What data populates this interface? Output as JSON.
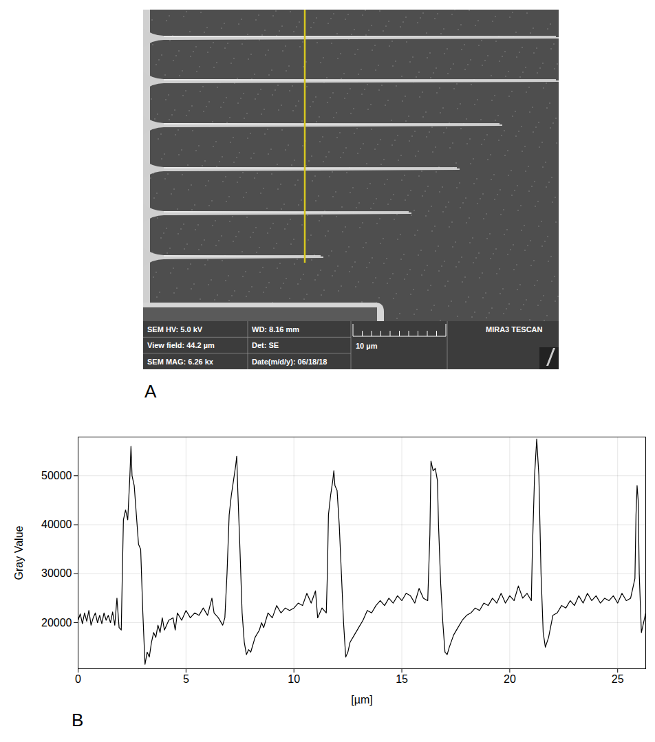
{
  "panel_a": {
    "label": "A",
    "info_bar": [
      [
        "SEM HV: 5.0 kV",
        "WD: 8.16 mm"
      ],
      [
        "View field: 44.2 µm",
        "Det: SE"
      ],
      [
        "SEM MAG: 6.26 kx",
        "Date(m/d/y): 06/18/18"
      ]
    ],
    "scale_bar_label": "10 µm",
    "brand": "MIRA3 TESCAN"
  },
  "chart_data": {
    "type": "line",
    "panel_label": "B",
    "x_label": "[µm]",
    "y_label": "Gray Value",
    "xlim": [
      0,
      26.3
    ],
    "ylim": [
      10600,
      57900
    ],
    "xticks": [
      0,
      5,
      10,
      15,
      20,
      25
    ],
    "yticks": [
      20000,
      30000,
      40000,
      50000
    ],
    "grid": true,
    "color": "#000000",
    "x": [
      0,
      0.1,
      0.2,
      0.3,
      0.4,
      0.5,
      0.6,
      0.7,
      0.8,
      0.9,
      1.0,
      1.1,
      1.2,
      1.3,
      1.4,
      1.5,
      1.6,
      1.7,
      1.8,
      1.9,
      2.0,
      2.05,
      2.1,
      2.2,
      2.3,
      2.4,
      2.45,
      2.5,
      2.6,
      2.7,
      2.8,
      2.9,
      3.0,
      3.1,
      3.2,
      3.3,
      3.4,
      3.5,
      3.6,
      3.7,
      3.8,
      3.9,
      4.0,
      4.2,
      4.4,
      4.5,
      4.6,
      4.8,
      5.0,
      5.2,
      5.4,
      5.6,
      5.8,
      6.0,
      6.2,
      6.3,
      6.5,
      6.7,
      6.8,
      6.9,
      7.0,
      7.1,
      7.2,
      7.3,
      7.35,
      7.4,
      7.5,
      7.6,
      7.7,
      7.8,
      7.9,
      8.0,
      8.2,
      8.4,
      8.5,
      8.6,
      8.8,
      9.0,
      9.2,
      9.4,
      9.6,
      9.8,
      10.0,
      10.2,
      10.4,
      10.6,
      10.8,
      11.0,
      11.1,
      11.3,
      11.5,
      11.55,
      11.6,
      11.7,
      11.8,
      11.85,
      11.9,
      12.0,
      12.1,
      12.2,
      12.3,
      12.4,
      12.5,
      12.6,
      12.8,
      13.0,
      13.2,
      13.4,
      13.6,
      13.8,
      14.0,
      14.2,
      14.4,
      14.6,
      14.8,
      15.0,
      15.2,
      15.4,
      15.6,
      15.8,
      16.0,
      16.2,
      16.3,
      16.35,
      16.45,
      16.55,
      16.65,
      16.7,
      16.8,
      16.9,
      17.0,
      17.1,
      17.2,
      17.4,
      17.6,
      17.8,
      18.0,
      18.2,
      18.4,
      18.6,
      18.8,
      19.0,
      19.2,
      19.4,
      19.6,
      19.8,
      20.0,
      20.2,
      20.4,
      20.6,
      20.8,
      21.0,
      21.05,
      21.15,
      21.25,
      21.35,
      21.45,
      21.55,
      21.65,
      21.8,
      22.0,
      22.2,
      22.4,
      22.6,
      22.8,
      23.0,
      23.2,
      23.4,
      23.6,
      23.8,
      24.0,
      24.2,
      24.4,
      24.6,
      24.8,
      25.0,
      25.2,
      25.4,
      25.6,
      25.8,
      25.85,
      25.9,
      25.95,
      26.0,
      26.1,
      26.2,
      26.3
    ],
    "values": [
      20500,
      21800,
      19800,
      22000,
      20300,
      22500,
      19500,
      21000,
      22000,
      20000,
      21500,
      19800,
      22000,
      20500,
      21500,
      20000,
      22200,
      19500,
      25000,
      19000,
      18500,
      30000,
      41000,
      43000,
      41000,
      50000,
      56000,
      50000,
      48000,
      42000,
      36000,
      35000,
      22000,
      11500,
      14000,
      13000,
      16000,
      18000,
      17000,
      19500,
      18000,
      21000,
      18500,
      20500,
      21000,
      18500,
      22000,
      20500,
      22500,
      21000,
      22000,
      21500,
      23000,
      21500,
      25000,
      22000,
      21000,
      19500,
      21000,
      30000,
      42000,
      46000,
      49000,
      52000,
      54000,
      47000,
      35000,
      22000,
      16000,
      13500,
      14500,
      14000,
      17000,
      18500,
      20000,
      19000,
      22000,
      21000,
      23500,
      22000,
      23000,
      22500,
      23000,
      24000,
      23500,
      26000,
      24000,
      26500,
      21000,
      23000,
      22000,
      30000,
      42000,
      46000,
      49000,
      51000,
      48000,
      47000,
      40000,
      30000,
      20000,
      13000,
      14000,
      16000,
      17500,
      19000,
      20500,
      22500,
      22000,
      23500,
      24500,
      23500,
      25000,
      24000,
      25500,
      24500,
      26000,
      25500,
      24000,
      27000,
      25000,
      24500,
      38000,
      53000,
      51000,
      51500,
      49000,
      40000,
      28000,
      20000,
      14000,
      13500,
      15000,
      17500,
      19000,
      20500,
      21500,
      22000,
      23000,
      22500,
      24000,
      23500,
      25000,
      24000,
      26000,
      24000,
      25500,
      24500,
      27500,
      25000,
      26000,
      24500,
      35000,
      50000,
      57500,
      50000,
      30000,
      18000,
      15000,
      17000,
      21500,
      22000,
      23500,
      23000,
      24500,
      23500,
      25500,
      24000,
      26000,
      24500,
      25500,
      24000,
      25000,
      24500,
      25500,
      24000,
      26000,
      24500,
      25000,
      29000,
      42000,
      48000,
      45000,
      30000,
      18000,
      20000,
      22000
    ]
  }
}
